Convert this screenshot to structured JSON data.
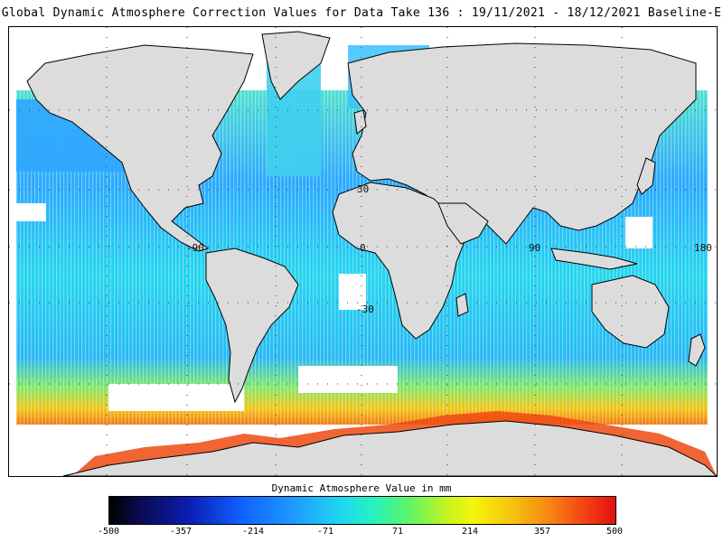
{
  "title": "Global Dynamic Atmosphere Correction Values for Data Take 136 : 19/11/2021 - 18/12/2021 Baseline-E",
  "map": {
    "lon_labels": [
      "-90",
      "0",
      "90",
      "180"
    ],
    "lat_labels": [
      "30",
      "-30"
    ],
    "colors": {
      "land": "#dcdcdc",
      "coast": "#000000",
      "no_data": "#ffffff",
      "low_band": "#1e9bff",
      "mid_band": "#22e6e6",
      "high_band": "#f23a12"
    }
  },
  "colorbar": {
    "title": "Dynamic Atmosphere Value in mm",
    "ticks": [
      "-500",
      "-357",
      "-214",
      "-71",
      "71",
      "214",
      "357",
      "500"
    ],
    "min": -500,
    "max": 500
  }
}
